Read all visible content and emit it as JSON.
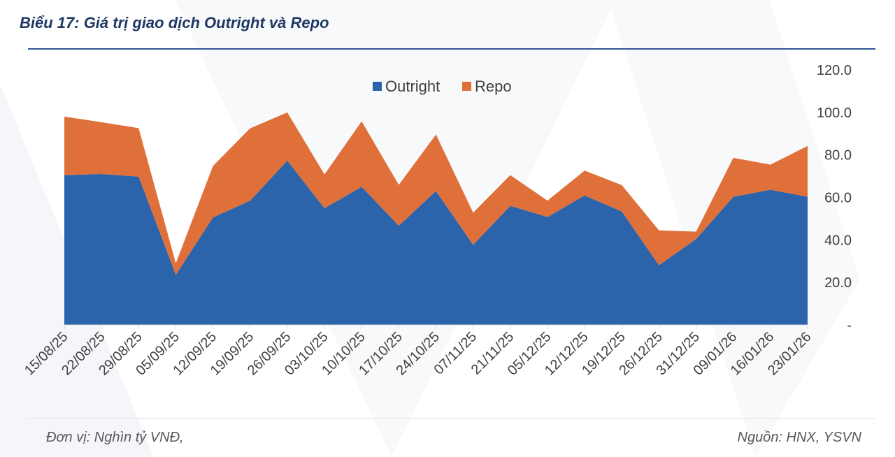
{
  "title": "Biểu 17: Giá trị giao dịch Outright và Repo",
  "footer": {
    "unit": "Đơn vị: Nghìn tỷ VNĐ,",
    "source": "Nguồn: HNX, YSVN"
  },
  "chart_data": {
    "type": "area",
    "stacked": true,
    "title": "",
    "xlabel": "",
    "ylabel": "",
    "ylim": [
      0,
      120
    ],
    "y_ticks": [
      "-",
      "20.0",
      "40.0",
      "60.0",
      "80.0",
      "100.0",
      "120.0"
    ],
    "y_axis_position": "right",
    "grid": false,
    "legend_position": "top-center",
    "categories": [
      "15/08/25",
      "22/08/25",
      "29/08/25",
      "05/09/25",
      "12/09/25",
      "19/09/25",
      "26/09/25",
      "03/10/25",
      "10/10/25",
      "17/10/25",
      "24/10/25",
      "07/11/25",
      "21/11/25",
      "05/12/25",
      "12/12/25",
      "19/12/25",
      "26/12/25",
      "31/12/25",
      "09/01/26",
      "16/01/26",
      "23/01/26"
    ],
    "series": [
      {
        "name": "Outright",
        "color": "#2b64ab",
        "values": [
          70.5,
          71.0,
          69.8,
          23.6,
          50.6,
          58.5,
          77.3,
          54.9,
          65.0,
          46.7,
          63.0,
          37.7,
          56.0,
          50.8,
          60.9,
          53.4,
          28.1,
          40.4,
          60.3,
          63.6,
          60.3
        ]
      },
      {
        "name": "Repo",
        "color": "#e0703a",
        "values": [
          27.5,
          24.4,
          22.8,
          5.4,
          24.2,
          34.0,
          22.7,
          15.9,
          30.8,
          19.2,
          26.6,
          15.1,
          14.5,
          7.7,
          11.7,
          12.4,
          16.4,
          3.5,
          18.3,
          11.8,
          23.9
        ]
      }
    ]
  }
}
